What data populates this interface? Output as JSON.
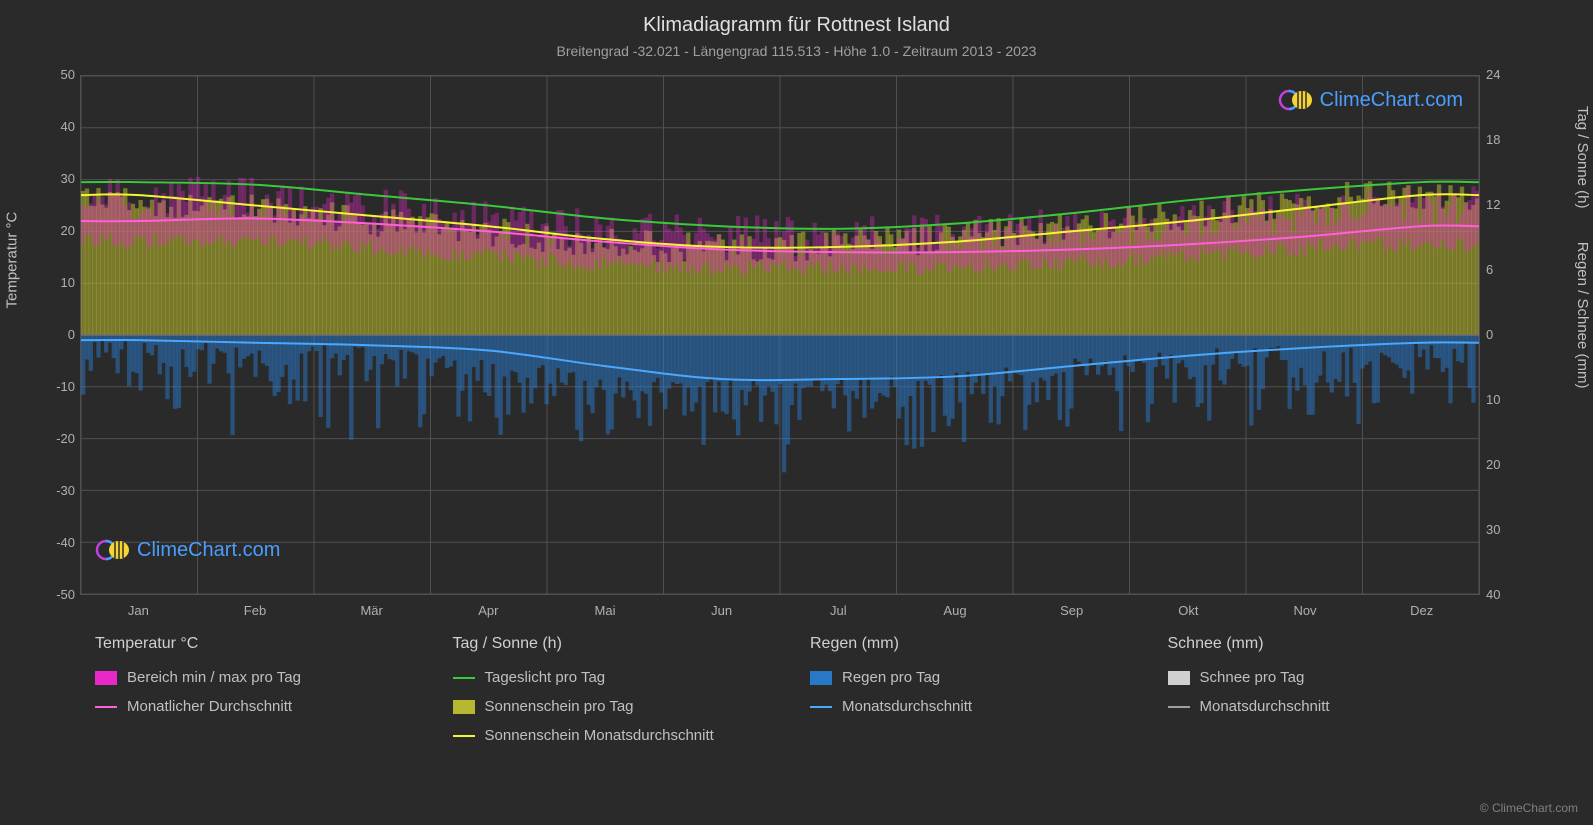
{
  "title": "Klimadiagramm für Rottnest Island",
  "subtitle": "Breitengrad -32.021 - Längengrad 115.513 - Höhe 1.0 - Zeitraum 2013 - 2023",
  "watermark_text": "ClimeChart.com",
  "copyright": "© ClimeChart.com",
  "chart": {
    "background_color": "#2a2a2a",
    "grid_color": "#505050",
    "months": [
      "Jan",
      "Feb",
      "Mär",
      "Apr",
      "Mai",
      "Jun",
      "Jul",
      "Aug",
      "Sep",
      "Okt",
      "Nov",
      "Dez"
    ],
    "y_left": {
      "label": "Temperatur °C",
      "min": -50,
      "max": 50,
      "step": 10,
      "ticks": [
        50,
        40,
        30,
        20,
        10,
        0,
        -10,
        -20,
        -30,
        -40,
        -50
      ]
    },
    "y_right_top": {
      "label": "Tag / Sonne (h)",
      "ticks": [
        24,
        18,
        12,
        6,
        0
      ],
      "tick_temps": [
        50,
        37.5,
        25,
        12.5,
        0
      ]
    },
    "y_right_bottom": {
      "label": "Regen / Schnee (mm)",
      "ticks": [
        0,
        10,
        20,
        30,
        40
      ],
      "tick_temps": [
        0,
        -12.5,
        -25,
        -37.5,
        -50
      ]
    },
    "series": {
      "daylight": {
        "label": "Tageslicht pro Tag",
        "color": "#3cc93c",
        "values": [
          29.5,
          29,
          27,
          25,
          22.5,
          21,
          20.5,
          21.5,
          23.5,
          26,
          28,
          29.5
        ]
      },
      "sunshine_avg": {
        "label": "Sonnenschein Monatsdurchschnitt",
        "color": "#f5f534",
        "values": [
          27,
          25,
          23,
          21,
          18.5,
          17,
          17,
          18,
          20,
          22,
          24.5,
          27
        ]
      },
      "temp_avg": {
        "label": "Monatlicher Durchschnitt",
        "color": "#ff60d8",
        "values": [
          22,
          22.5,
          21.5,
          20,
          18,
          16.5,
          16,
          16,
          16.5,
          17.5,
          19,
          21
        ]
      },
      "rain_avg": {
        "label": "Monatsdurchschnitt",
        "color": "#4aa8ff",
        "values": [
          -1,
          -1.5,
          -2,
          -3,
          -6,
          -8.5,
          -8.5,
          -8,
          -6,
          -4,
          -2.5,
          -1.5
        ]
      },
      "temp_range": {
        "label": "Bereich min / max pro Tag",
        "color": "#e828c8",
        "min_values": [
          18,
          18.5,
          17.5,
          16,
          14.5,
          13,
          13,
          13,
          13.5,
          14.5,
          16,
          17.5
        ],
        "max_values": [
          26,
          27,
          25.5,
          23.5,
          21,
          19.5,
          19,
          19,
          20,
          21,
          23,
          25
        ]
      },
      "sunshine_bars": {
        "label": "Sonnenschein pro Tag",
        "color": "#b8b830"
      },
      "rain_bars": {
        "label": "Regen pro Tag",
        "color": "#2878c8"
      },
      "snow_bars": {
        "label": "Schnee pro Tag",
        "color": "#d0d0d0"
      },
      "snow_avg": {
        "label": "Monatsdurchschnitt",
        "color": "#a0a0a0"
      }
    }
  },
  "legend": {
    "groups": [
      {
        "header": "Temperatur °C",
        "items": [
          {
            "type": "swatch",
            "color": "#e828c8",
            "key": "chart.series.temp_range.label"
          },
          {
            "type": "line",
            "color": "#ff60d8",
            "key": "chart.series.temp_avg.label"
          }
        ]
      },
      {
        "header": "Tag / Sonne (h)",
        "items": [
          {
            "type": "line",
            "color": "#3cc93c",
            "key": "chart.series.daylight.label"
          },
          {
            "type": "swatch",
            "color": "#b8b830",
            "key": "chart.series.sunshine_bars.label"
          },
          {
            "type": "line",
            "color": "#f5f534",
            "key": "chart.series.sunshine_avg.label"
          }
        ]
      },
      {
        "header": "Regen (mm)",
        "items": [
          {
            "type": "swatch",
            "color": "#2878c8",
            "key": "chart.series.rain_bars.label"
          },
          {
            "type": "line",
            "color": "#4aa8ff",
            "key": "chart.series.rain_avg.label"
          }
        ]
      },
      {
        "header": "Schnee (mm)",
        "items": [
          {
            "type": "swatch",
            "color": "#d0d0d0",
            "key": "chart.series.snow_bars.label"
          },
          {
            "type": "line",
            "color": "#a0a0a0",
            "key": "chart.series.snow_avg.label"
          }
        ]
      }
    ]
  }
}
